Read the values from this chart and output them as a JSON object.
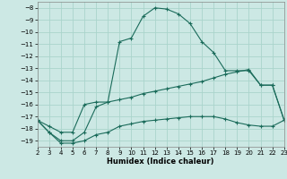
{
  "xlabel": "Humidex (Indice chaleur)",
  "bg_color": "#cce8e4",
  "grid_color": "#aad4cc",
  "line_color": "#1a6b5a",
  "x": [
    2,
    3,
    4,
    5,
    6,
    7,
    8,
    9,
    10,
    11,
    12,
    13,
    14,
    15,
    16,
    17,
    18,
    19,
    20,
    21,
    22,
    23
  ],
  "y_max": [
    -17.3,
    -18.3,
    -19.0,
    -19.0,
    -18.3,
    -16.2,
    -15.8,
    -10.8,
    -10.5,
    -8.7,
    -8.0,
    -8.1,
    -8.5,
    -9.3,
    -10.8,
    -11.7,
    -13.2,
    -13.2,
    -13.2,
    -14.4,
    -14.4,
    -17.3
  ],
  "y_mean": [
    -17.3,
    -17.8,
    -18.3,
    -18.3,
    -16.0,
    -15.8,
    -15.8,
    -15.6,
    -15.4,
    -15.1,
    -14.9,
    -14.7,
    -14.5,
    -14.3,
    -14.1,
    -13.8,
    -13.5,
    -13.3,
    -13.1,
    -14.4,
    -14.4,
    -17.3
  ],
  "y_min": [
    -17.3,
    -18.3,
    -19.2,
    -19.2,
    -19.0,
    -18.5,
    -18.3,
    -17.8,
    -17.6,
    -17.4,
    -17.3,
    -17.2,
    -17.1,
    -17.0,
    -17.0,
    -17.0,
    -17.2,
    -17.5,
    -17.7,
    -17.8,
    -17.8,
    -17.3
  ],
  "xlim": [
    2,
    23
  ],
  "ylim": [
    -19.5,
    -7.5
  ],
  "yticks": [
    -8,
    -9,
    -10,
    -11,
    -12,
    -13,
    -14,
    -15,
    -16,
    -17,
    -18,
    -19
  ],
  "xticks": [
    2,
    3,
    4,
    5,
    6,
    7,
    8,
    9,
    10,
    11,
    12,
    13,
    14,
    15,
    16,
    17,
    18,
    19,
    20,
    21,
    22,
    23
  ]
}
